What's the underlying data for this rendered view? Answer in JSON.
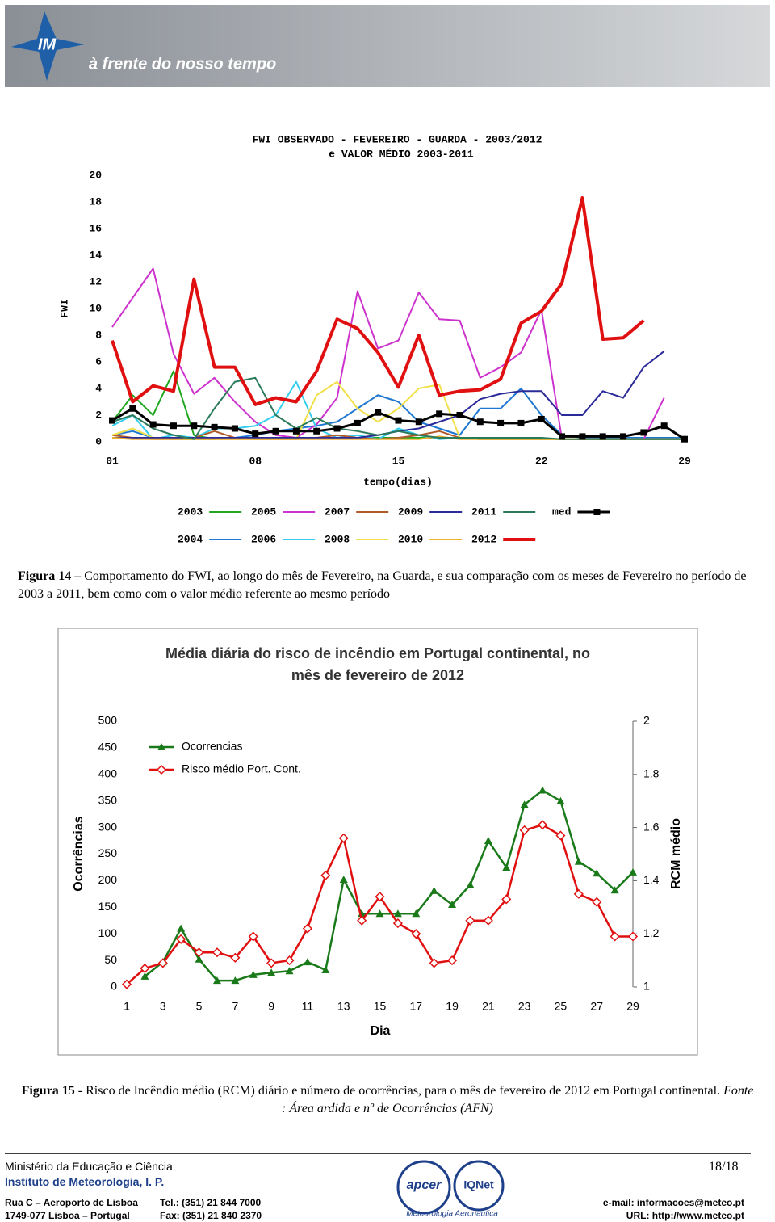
{
  "header": {
    "logo_text": "IM",
    "slogan": "à frente do nosso tempo"
  },
  "chart_data": [
    {
      "type": "line",
      "title": [
        "FWI OBSERVADO - FEVEREIRO - GUARDA - 2003/2012",
        "e VALOR MÉDIO 2003-2011"
      ],
      "ylabel": "FWI",
      "xlabel": "tempo(dias)",
      "x": [
        1,
        2,
        3,
        4,
        5,
        6,
        7,
        8,
        9,
        10,
        11,
        12,
        13,
        14,
        15,
        16,
        17,
        18,
        19,
        20,
        21,
        22,
        23,
        24,
        25,
        26,
        27,
        28,
        29
      ],
      "xlim": [
        1,
        29
      ],
      "xticks": [
        {
          "value": 1,
          "label": "01"
        },
        {
          "value": 8,
          "label": "08"
        },
        15,
        22,
        29
      ],
      "ylim": [
        0,
        20
      ],
      "yticks": [
        0,
        2,
        4,
        6,
        8,
        10,
        12,
        14,
        16,
        18,
        20
      ],
      "grid": false,
      "series": [
        {
          "name": "2003",
          "color": "#1fa81f",
          "values": [
            1.5,
            3.5,
            2.0,
            5.3,
            0.5,
            0.2,
            0.3,
            0.3,
            0.3,
            0.3,
            0.3,
            0.3,
            0.3,
            0.3,
            0.3,
            0.3,
            0.3,
            0.3,
            0.2,
            0.2,
            0.2,
            0.2,
            0.2,
            0.2,
            0.2,
            0.2,
            0.2,
            0.2,
            0.2
          ]
        },
        {
          "name": "2004",
          "color": "#1e78d2",
          "values": [
            0.5,
            0.8,
            0.3,
            0.2,
            0.2,
            0.2,
            0.3,
            0.5,
            0.8,
            1.0,
            1.2,
            1.5,
            2.5,
            3.5,
            3.0,
            1.5,
            1.0,
            0.5,
            2.5,
            2.5,
            4.0,
            2.0,
            0.5,
            0.3,
            0.3,
            0.3,
            0.3,
            0.3,
            0.3
          ]
        },
        {
          "name": "2005",
          "color": "#cc33cc",
          "values": [
            8.6,
            10.8,
            13.0,
            6.6,
            3.6,
            4.8,
            3.0,
            1.5,
            0.5,
            0.3,
            1.3,
            3.3,
            11.3,
            7.0,
            7.6,
            11.2,
            9.2,
            9.1,
            4.8,
            5.6,
            6.7,
            9.9,
            0.2,
            0.2,
            0.2,
            0.2,
            0.2,
            3.3,
            null
          ]
        },
        {
          "name": "2006",
          "color": "#33ccee",
          "values": [
            1.2,
            2.0,
            0.2,
            0.5,
            0.3,
            1.0,
            1.0,
            1.2,
            2.0,
            4.5,
            1.0,
            0.3,
            0.5,
            0.2,
            1.0,
            0.5,
            0.2,
            0.3,
            0.2,
            0.2,
            0.2,
            0.2,
            0.2,
            0.2,
            0.2,
            0.2,
            0.2,
            0.2,
            0.2
          ]
        },
        {
          "name": "2007",
          "color": "#b05a2a",
          "values": [
            0.5,
            0.3,
            0.2,
            0.2,
            0.3,
            0.8,
            0.3,
            0.2,
            0.2,
            0.2,
            0.3,
            0.5,
            0.3,
            0.2,
            0.3,
            0.5,
            0.8,
            0.3,
            0.2,
            0.2,
            0.2,
            0.2,
            0.2,
            0.2,
            0.2,
            0.2,
            0.2,
            0.2,
            0.2
          ]
        },
        {
          "name": "2008",
          "color": "#f2e04a",
          "values": [
            0.5,
            1.0,
            0.3,
            0.2,
            0.2,
            0.2,
            0.2,
            0.2,
            0.2,
            0.2,
            3.5,
            4.5,
            2.5,
            1.5,
            2.5,
            4.0,
            4.3,
            0.3,
            0.2,
            0.2,
            0.2,
            0.2,
            0.2,
            0.2,
            0.2,
            0.2,
            0.2,
            0.2,
            0.2
          ]
        },
        {
          "name": "2009",
          "color": "#2a2a99",
          "values": [
            0.3,
            0.3,
            0.3,
            0.3,
            0.3,
            0.3,
            0.3,
            0.3,
            0.3,
            0.3,
            0.3,
            0.3,
            0.3,
            0.5,
            0.8,
            1.0,
            1.5,
            2.0,
            3.2,
            3.6,
            3.8,
            3.8,
            2.0,
            2.0,
            3.8,
            3.3,
            5.6,
            6.8,
            null
          ]
        },
        {
          "name": "2010",
          "color": "#f0b030",
          "values": [
            0.3,
            0.2,
            0.2,
            0.2,
            0.2,
            0.2,
            0.2,
            0.2,
            0.2,
            0.2,
            0.2,
            0.2,
            0.2,
            0.2,
            0.2,
            0.2,
            0.4,
            0.2,
            0.2,
            0.2,
            0.2,
            0.2,
            0.2,
            0.2,
            0.2,
            0.2,
            0.2,
            0.2,
            0.2
          ]
        },
        {
          "name": "2011",
          "color": "#2a7a5a",
          "values": [
            1.5,
            2.0,
            1.0,
            0.5,
            0.2,
            2.5,
            4.5,
            4.8,
            2.0,
            1.0,
            1.8,
            1.0,
            0.8,
            0.5,
            0.8,
            0.5,
            0.3,
            0.3,
            0.3,
            0.3,
            0.3,
            0.3,
            0.2,
            0.2,
            0.2,
            0.2,
            0.2,
            0.2,
            0.2
          ]
        },
        {
          "name": "2012",
          "color": "#e01010",
          "line_width": 4,
          "values": [
            7.6,
            3.0,
            4.2,
            3.8,
            12.2,
            5.6,
            5.6,
            2.8,
            3.3,
            3.0,
            5.3,
            9.2,
            8.5,
            6.7,
            4.1,
            8.0,
            3.5,
            3.8,
            3.9,
            4.7,
            8.9,
            9.8,
            11.9,
            18.3,
            7.7,
            7.8,
            9.1,
            null,
            null
          ]
        },
        {
          "name": "med",
          "color": "#000000",
          "marker": "square",
          "line_width": 3,
          "values": [
            1.6,
            2.5,
            1.3,
            1.2,
            1.2,
            1.1,
            1.0,
            0.6,
            0.8,
            0.8,
            0.8,
            1.0,
            1.4,
            2.2,
            1.6,
            1.5,
            2.1,
            2.0,
            1.5,
            1.4,
            1.4,
            1.7,
            0.4,
            0.4,
            0.4,
            0.4,
            0.7,
            1.2,
            0.2
          ]
        }
      ]
    },
    {
      "type": "line",
      "title": [
        "Média diária do risco de incêndio em Portugal continental, no",
        "mês de fevereiro de 2012"
      ],
      "xlabel": "Dia",
      "ylabel": "Ocorrências",
      "y2label": "RCM médio",
      "x": [
        1,
        2,
        3,
        4,
        5,
        6,
        7,
        8,
        9,
        10,
        11,
        12,
        13,
        14,
        15,
        16,
        17,
        18,
        19,
        20,
        21,
        22,
        23,
        24,
        25,
        26,
        27,
        28,
        29
      ],
      "xlim": [
        1,
        29
      ],
      "xticks": [
        1,
        3,
        5,
        7,
        9,
        11,
        13,
        15,
        17,
        19,
        21,
        23,
        25,
        27,
        29
      ],
      "ylim": [
        0,
        500
      ],
      "yticks": [
        0,
        50,
        100,
        150,
        200,
        250,
        300,
        350,
        400,
        450,
        500
      ],
      "y2lim": [
        1,
        2
      ],
      "y2ticks": [
        1,
        1.2,
        1.4,
        1.6,
        1.8,
        2
      ],
      "grid": false,
      "series": [
        {
          "name": "Ocorrencias",
          "color": "#1a7a1a",
          "marker": "triangle",
          "line_width": 2.5,
          "values": [
            null,
            20,
            47,
            110,
            52,
            12,
            12,
            23,
            27,
            30,
            47,
            32,
            202,
            138,
            138,
            138,
            138,
            181,
            155,
            192,
            275,
            225,
            343,
            370,
            350,
            236,
            214,
            182,
            216
          ]
        },
        {
          "name": "Risco médio Port. Cont.",
          "color": "#e01010",
          "marker": "diamond",
          "line_width": 2.5,
          "axis": "y2",
          "values": [
            1.01,
            1.07,
            1.09,
            1.18,
            1.13,
            1.13,
            1.11,
            1.19,
            1.09,
            1.1,
            1.22,
            1.42,
            1.56,
            1.25,
            1.34,
            1.24,
            1.2,
            1.09,
            1.1,
            1.25,
            1.25,
            1.33,
            1.59,
            1.61,
            1.57,
            1.35,
            1.32,
            1.19,
            1.19
          ]
        }
      ]
    }
  ],
  "captions": [
    {
      "label": "Figura 14",
      "text": "Comportamento do FWI, ao longo do mês de Fevereiro, na Guarda, e sua comparação com os meses de Fevereiro no período de 2003 a 2011, bem como com o valor médio referente ao mesmo período"
    },
    {
      "label": "Figura 15",
      "text": "- Risco de Incêndio médio (RCM) diário e número de ocorrências, para o mês de fevereiro de 2012 em Portugal continental.",
      "source": "Fonte : Área ardida e nº de Ocorrências (AFN)"
    }
  ],
  "footer": {
    "ministry": "Ministério da Educação e Ciência",
    "institute": "Instituto de Meteorologia, I. P.",
    "page": "18/18",
    "address": [
      "Rua C – Aeroporto de Lisboa",
      "1749-077 Lisboa – Portugal"
    ],
    "phone": [
      "Tel.: (351) 21 844 7000",
      "Fax: (351) 21 840 2370"
    ],
    "contact": [
      "e-mail: informacoes@meteo.pt",
      "URL: http://www.meteo.pt"
    ],
    "logos": [
      "apcer",
      "IQNet",
      "Meteorologia Aeronáutica"
    ]
  }
}
